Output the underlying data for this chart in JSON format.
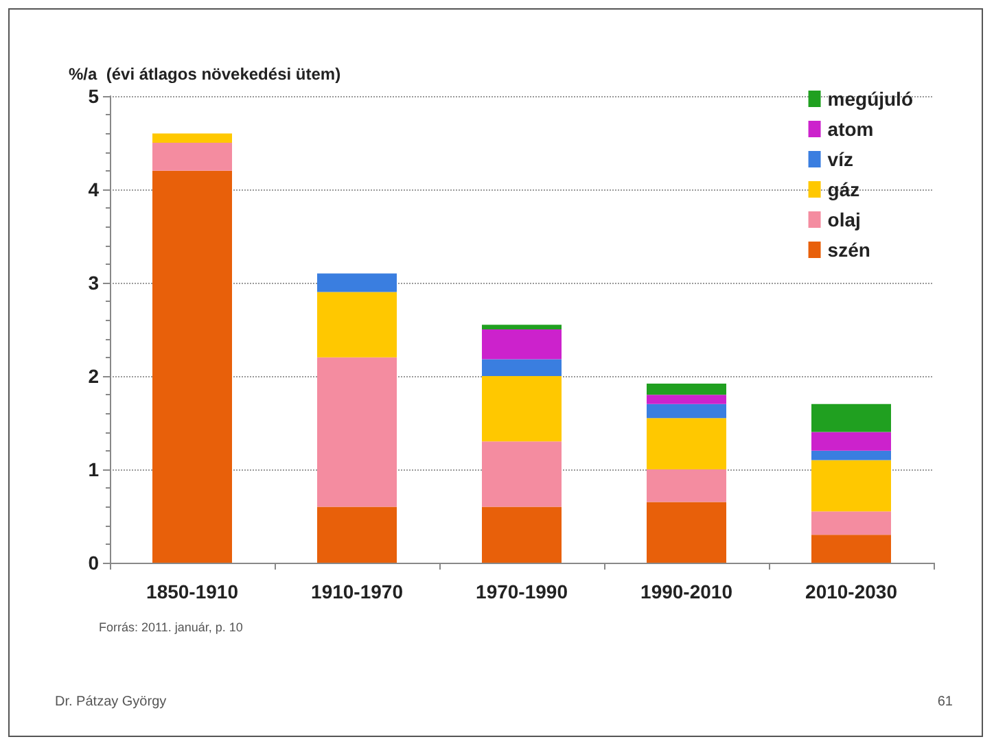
{
  "chart_data": {
    "type": "bar",
    "stacked": true,
    "ylabel": "%/a  (évi átlagos növekedési ütem)",
    "categories": [
      "1850-1910",
      "1910-1970",
      "1970-1990",
      "1990-2010",
      "2010-2030"
    ],
    "series": [
      {
        "name": "szén",
        "color": "#e8600a",
        "values": [
          4.2,
          0.6,
          0.6,
          0.65,
          0.3
        ]
      },
      {
        "name": "olaj",
        "color": "#f48ca0",
        "values": [
          0.3,
          1.6,
          0.7,
          0.35,
          0.25
        ]
      },
      {
        "name": "gáz",
        "color": "#ffc800",
        "values": [
          0.1,
          0.7,
          0.7,
          0.55,
          0.55
        ]
      },
      {
        "name": "víz",
        "color": "#3a7ee0",
        "values": [
          null,
          0.2,
          0.18,
          0.15,
          0.1
        ]
      },
      {
        "name": "atom",
        "color": "#cc22cc",
        "values": [
          null,
          null,
          0.32,
          0.1,
          0.2
        ]
      },
      {
        "name": "megújuló",
        "color": "#20a020",
        "values": [
          null,
          null,
          0.05,
          0.12,
          0.3
        ]
      }
    ],
    "ylim": [
      0,
      5
    ],
    "yticks": [
      0,
      1,
      2,
      3,
      4,
      5
    ],
    "grid": "y",
    "legend": "top right",
    "annotations": [
      "Forrás: 2011. január, p. 10",
      "Dr. Pátzay György",
      "61"
    ]
  }
}
